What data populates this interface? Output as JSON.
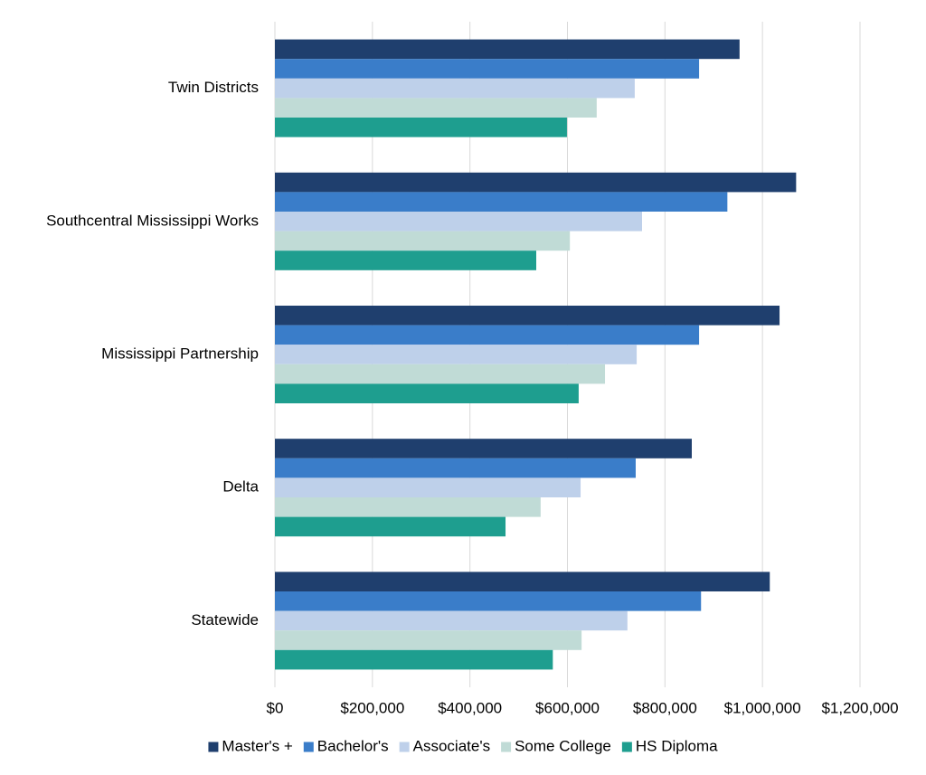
{
  "chart_data": {
    "type": "hbar",
    "categories": [
      "Twin Districts",
      "Southcentral Mississippi Works",
      "Mississippi Partnership",
      "Delta",
      "Statewide"
    ],
    "series": [
      {
        "name": "Master's +",
        "color": "#1f3f6e",
        "values": [
          953000,
          1069000,
          1035000,
          855000,
          1015000
        ]
      },
      {
        "name": "Bachelor's",
        "color": "#3a7dc9",
        "values": [
          870000,
          928000,
          870000,
          740000,
          874000
        ]
      },
      {
        "name": "Associate's",
        "color": "#bed0ea",
        "values": [
          738000,
          753000,
          742000,
          627000,
          723000
        ]
      },
      {
        "name": "Some College",
        "color": "#c0dbd6",
        "values": [
          660000,
          605000,
          677000,
          545000,
          629000
        ]
      },
      {
        "name": "HS Diploma",
        "color": "#1e9e8f",
        "values": [
          599000,
          536000,
          623000,
          473000,
          570000
        ]
      }
    ],
    "xlim": [
      0,
      1200000
    ],
    "xticks": [
      {
        "value": 0,
        "label": "$0"
      },
      {
        "value": 200000,
        "label": "$200,000"
      },
      {
        "value": 400000,
        "label": "$400,000"
      },
      {
        "value": 600000,
        "label": "$600,000"
      },
      {
        "value": 800000,
        "label": "$800,000"
      },
      {
        "value": 1000000,
        "label": "$1,000,000"
      },
      {
        "value": 1200000,
        "label": "$1,200,000"
      }
    ],
    "grid": true,
    "legend": "bottom"
  }
}
